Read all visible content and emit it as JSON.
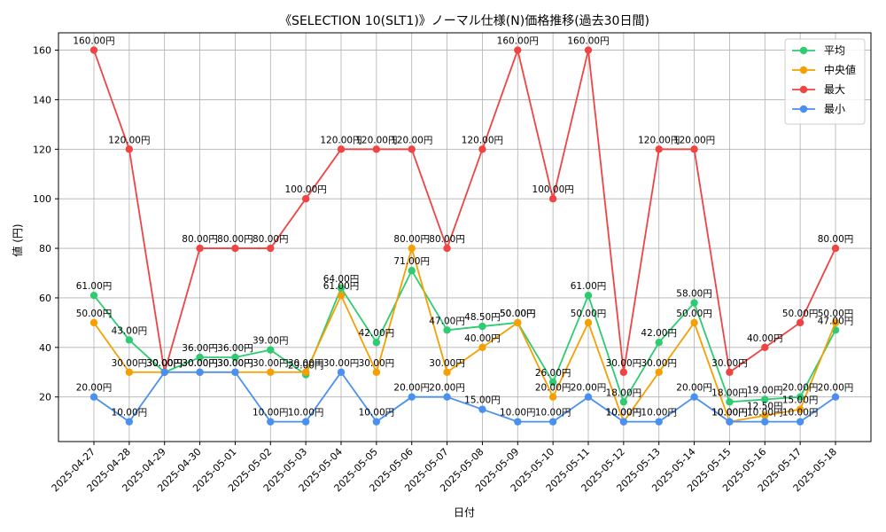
{
  "chart_data": {
    "type": "line",
    "title": "《SELECTION 10(SLT1)》ノーマル仕様(N)価格推移(過去30日間)",
    "xlabel": "日付",
    "ylabel": "値 (円)",
    "ylim": [
      2,
      167
    ],
    "yticks": [
      20,
      40,
      60,
      80,
      100,
      120,
      140,
      160
    ],
    "grid": true,
    "legend_position": "top-right",
    "value_suffix": "円",
    "categories": [
      "2025-04-27",
      "2025-04-28",
      "2025-04-29",
      "2025-04-30",
      "2025-05-01",
      "2025-05-02",
      "2025-05-03",
      "2025-05-04",
      "2025-05-05",
      "2025-05-06",
      "2025-05-07",
      "2025-05-08",
      "2025-05-09",
      "2025-05-10",
      "2025-05-11",
      "2025-05-12",
      "2025-05-13",
      "2025-05-14",
      "2025-05-15",
      "2025-05-16",
      "2025-05-17",
      "2025-05-18"
    ],
    "series": [
      {
        "name": "平均",
        "color": "#2ecc71",
        "values": [
          61,
          43,
          30,
          36,
          36,
          39,
          29,
          64,
          42,
          71,
          47,
          48.5,
          50,
          26,
          61,
          18,
          42,
          58,
          18,
          19,
          20,
          47
        ]
      },
      {
        "name": "中央値",
        "color": "#f5a000",
        "values": [
          50,
          30,
          30,
          30,
          30,
          30,
          30,
          61,
          30,
          80,
          30,
          40,
          50,
          20,
          50,
          10,
          30,
          50,
          10,
          12.5,
          15,
          50
        ]
      },
      {
        "name": "最大",
        "color": "#ef4444",
        "values": [
          160,
          120,
          30,
          80,
          80,
          80,
          100,
          120,
          120,
          120,
          80,
          120,
          160,
          100,
          160,
          30,
          120,
          120,
          30,
          40,
          50,
          80
        ]
      },
      {
        "name": "最小",
        "color": "#4a90f0",
        "values": [
          20,
          10,
          30,
          30,
          30,
          10,
          10,
          30,
          10,
          20,
          20,
          15,
          10,
          10,
          20,
          10,
          10,
          20,
          10,
          10,
          10,
          20
        ]
      }
    ]
  }
}
